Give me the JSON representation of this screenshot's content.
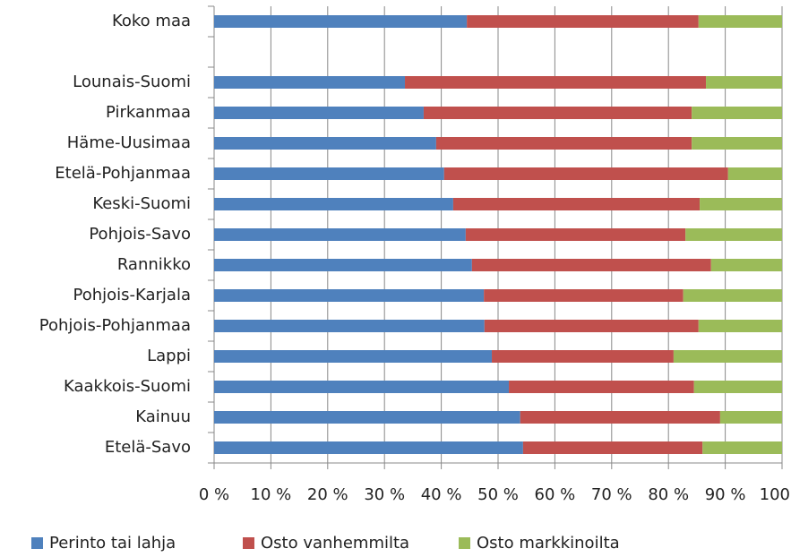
{
  "chart_data": {
    "type": "bar",
    "orientation": "horizontal",
    "stacked": true,
    "categories": [
      "Koko maa",
      null,
      "Lounais-Suomi",
      "Pirkanmaa",
      "Häme-Uusimaa",
      "Etelä-Pohjanmaa",
      "Keski-Suomi",
      "Pohjois-Savo",
      "Rannikko",
      "Pohjois-Karjala",
      "Pohjois-Pohjanmaa",
      "Lappi",
      "Kaakkois-Suomi",
      "Kainuu",
      "Etelä-Savo"
    ],
    "series": [
      {
        "name": "Perinto tai lahja",
        "color": "#4f81bd",
        "values": [
          44.5,
          null,
          33.6,
          36.9,
          39.1,
          40.5,
          42.1,
          44.3,
          45.4,
          47.5,
          47.6,
          48.9,
          51.9,
          53.9,
          54.4
        ]
      },
      {
        "name": "Osto vanhemmilta",
        "color": "#c0504d",
        "values": [
          40.8,
          null,
          53.0,
          47.2,
          45.0,
          50.0,
          43.4,
          38.7,
          42.1,
          35.1,
          37.7,
          32.0,
          32.6,
          35.2,
          31.6
        ]
      },
      {
        "name": "Osto markkinoilta",
        "color": "#9bbb59",
        "values": [
          14.7,
          null,
          13.4,
          15.9,
          15.9,
          9.5,
          14.5,
          17.0,
          12.5,
          17.4,
          14.7,
          19.1,
          15.5,
          10.9,
          14.0
        ]
      }
    ],
    "xlim": [
      0,
      100
    ],
    "xticks": [
      {
        "value": 0,
        "label": "0 %"
      },
      {
        "value": 10,
        "label": "10 %"
      },
      {
        "value": 20,
        "label": "20 %"
      },
      {
        "value": 30,
        "label": "30 %"
      },
      {
        "value": 40,
        "label": "40 %"
      },
      {
        "value": 50,
        "label": "50 %"
      },
      {
        "value": 60,
        "label": "60 %"
      },
      {
        "value": 70,
        "label": "70 %"
      },
      {
        "value": 80,
        "label": "80 %"
      },
      {
        "value": 90,
        "label": "90 %"
      },
      100
    ],
    "grid": true,
    "legend": "bottom"
  }
}
